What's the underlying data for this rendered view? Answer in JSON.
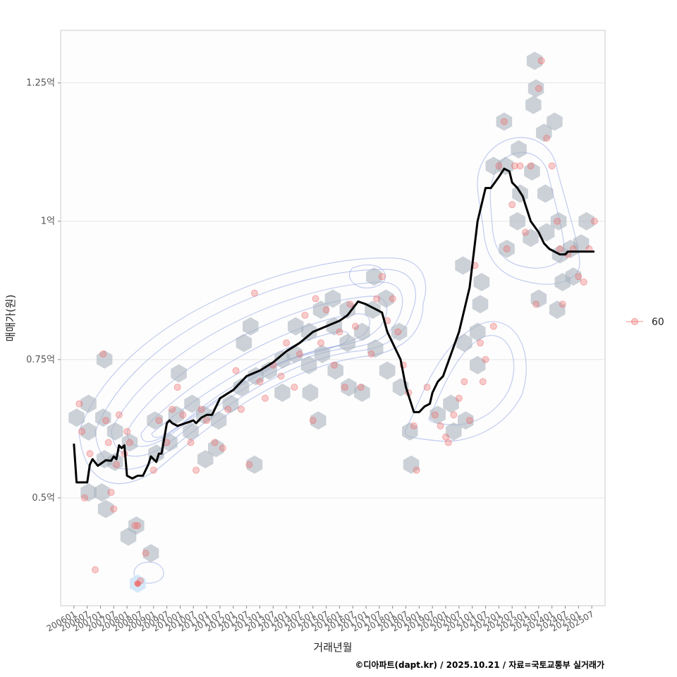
{
  "chart_data": {
    "type": "scatter",
    "xlabel": "거래년월",
    "ylabel": "매매가(원)",
    "caption": "©디아파트(dapt.kr) / 2025.10.21 / 자료=국토교통부 실거래가",
    "legend": {
      "label": "60",
      "position": "right"
    },
    "x_range": [
      2005.5,
      2026.0
    ],
    "ylim": [
      0.305,
      1.345
    ],
    "y_ticks": [
      {
        "value": 0.5,
        "label": "0.5억"
      },
      {
        "value": 0.75,
        "label": "0.75억"
      },
      {
        "value": 1.0,
        "label": "1억"
      },
      {
        "value": 1.25,
        "label": "1.25억"
      }
    ],
    "x_ticks": [
      "200601",
      "200607",
      "200701",
      "200707",
      "200801",
      "200807",
      "200901",
      "200907",
      "201001",
      "201007",
      "201101",
      "201107",
      "201201",
      "201207",
      "201301",
      "201307",
      "201401",
      "201407",
      "201501",
      "201507",
      "201601",
      "201607",
      "201701",
      "201707",
      "201801",
      "201807",
      "201901",
      "201907",
      "202001",
      "202007",
      "202101",
      "202107",
      "202201",
      "202207",
      "202301",
      "202307",
      "202401",
      "202407",
      "202501",
      "202507"
    ],
    "trend_line": {
      "name": "moving average",
      "x": [
        2006.0,
        2006.1,
        2006.5,
        2006.6,
        2006.7,
        2006.9,
        2007.2,
        2007.4,
        2007.5,
        2007.6,
        2007.7,
        2007.8,
        2007.9,
        2008.0,
        2008.2,
        2008.4,
        2008.6,
        2008.8,
        2008.9,
        2009.1,
        2009.2,
        2009.3,
        2009.5,
        2009.6,
        2009.7,
        2009.9,
        2010.2,
        2010.5,
        2010.6,
        2010.8,
        2011.0,
        2011.2,
        2011.5,
        2012.0,
        2012.5,
        2013.0,
        2013.5,
        2014.0,
        2014.5,
        2015.0,
        2015.5,
        2016.0,
        2016.3,
        2016.7,
        2017.0,
        2017.2,
        2017.4,
        2017.6,
        2017.8,
        2018.1,
        2018.3,
        2018.5,
        2018.8,
        2019.0,
        2019.2,
        2019.4,
        2019.5,
        2019.7,
        2019.9,
        2020.2,
        2020.5,
        2020.9,
        2021.2,
        2021.5,
        2021.7,
        2022.0,
        2022.2,
        2022.4,
        2022.5,
        2022.7,
        2022.9,
        2023.0,
        2023.2,
        2023.5,
        2023.7,
        2023.9,
        2024.1,
        2024.3,
        2024.5,
        2024.6,
        2024.8,
        2024.9,
        2025.0,
        2025.2,
        2025.4,
        2025.6
      ],
      "values": [
        0.598,
        0.528,
        0.528,
        0.56,
        0.57,
        0.558,
        0.568,
        0.567,
        0.575,
        0.57,
        0.595,
        0.59,
        0.595,
        0.54,
        0.535,
        0.54,
        0.54,
        0.56,
        0.575,
        0.565,
        0.58,
        0.58,
        0.635,
        0.64,
        0.635,
        0.63,
        0.635,
        0.64,
        0.635,
        0.645,
        0.65,
        0.65,
        0.68,
        0.695,
        0.72,
        0.73,
        0.745,
        0.765,
        0.78,
        0.8,
        0.81,
        0.82,
        0.83,
        0.855,
        0.85,
        0.845,
        0.84,
        0.835,
        0.8,
        0.77,
        0.75,
        0.7,
        0.655,
        0.655,
        0.665,
        0.67,
        0.69,
        0.71,
        0.72,
        0.76,
        0.8,
        0.88,
        1.0,
        1.06,
        1.06,
        1.08,
        1.095,
        1.09,
        1.07,
        1.06,
        1.045,
        1.03,
        1.0,
        0.98,
        0.96,
        0.95,
        0.945,
        0.94,
        0.94,
        0.945,
        0.945,
        0.945,
        0.945,
        0.945,
        0.945,
        0.945
      ]
    },
    "series": [
      {
        "name": "60",
        "points": [
          [
            2006.2,
            0.67
          ],
          [
            2006.3,
            0.62
          ],
          [
            2006.4,
            0.5
          ],
          [
            2006.6,
            0.58
          ],
          [
            2006.8,
            0.37
          ],
          [
            2007.1,
            0.76
          ],
          [
            2007.2,
            0.64
          ],
          [
            2007.3,
            0.6
          ],
          [
            2007.4,
            0.51
          ],
          [
            2007.5,
            0.48
          ],
          [
            2007.6,
            0.56
          ],
          [
            2007.7,
            0.65
          ],
          [
            2007.9,
            0.58
          ],
          [
            2008.0,
            0.62
          ],
          [
            2008.1,
            0.6
          ],
          [
            2008.3,
            0.45
          ],
          [
            2008.4,
            0.45
          ],
          [
            2008.5,
            0.35
          ],
          [
            2008.7,
            0.4
          ],
          [
            2009.0,
            0.55
          ],
          [
            2009.2,
            0.64
          ],
          [
            2009.5,
            0.6
          ],
          [
            2009.7,
            0.66
          ],
          [
            2009.9,
            0.7
          ],
          [
            2010.1,
            0.65
          ],
          [
            2010.4,
            0.6
          ],
          [
            2010.6,
            0.55
          ],
          [
            2010.8,
            0.66
          ],
          [
            2011.0,
            0.64
          ],
          [
            2011.3,
            0.6
          ],
          [
            2011.6,
            0.59
          ],
          [
            2011.8,
            0.66
          ],
          [
            2012.1,
            0.73
          ],
          [
            2012.3,
            0.66
          ],
          [
            2012.6,
            0.56
          ],
          [
            2012.8,
            0.87
          ],
          [
            2013.0,
            0.71
          ],
          [
            2013.2,
            0.68
          ],
          [
            2013.5,
            0.74
          ],
          [
            2013.8,
            0.72
          ],
          [
            2014.0,
            0.78
          ],
          [
            2014.3,
            0.7
          ],
          [
            2014.5,
            0.76
          ],
          [
            2014.7,
            0.83
          ],
          [
            2015.0,
            0.64
          ],
          [
            2015.1,
            0.86
          ],
          [
            2015.3,
            0.78
          ],
          [
            2015.5,
            0.84
          ],
          [
            2015.8,
            0.74
          ],
          [
            2016.0,
            0.8
          ],
          [
            2016.2,
            0.7
          ],
          [
            2016.4,
            0.85
          ],
          [
            2016.6,
            0.81
          ],
          [
            2016.8,
            0.7
          ],
          [
            2017.2,
            0.76
          ],
          [
            2017.4,
            0.86
          ],
          [
            2017.6,
            0.9
          ],
          [
            2017.8,
            0.82
          ],
          [
            2018.0,
            0.86
          ],
          [
            2018.2,
            0.8
          ],
          [
            2018.4,
            0.74
          ],
          [
            2018.6,
            0.69
          ],
          [
            2018.8,
            0.63
          ],
          [
            2018.9,
            0.55
          ],
          [
            2019.3,
            0.7
          ],
          [
            2019.6,
            0.65
          ],
          [
            2019.8,
            0.63
          ],
          [
            2020.0,
            0.61
          ],
          [
            2020.1,
            0.6
          ],
          [
            2020.3,
            0.65
          ],
          [
            2020.5,
            0.68
          ],
          [
            2020.7,
            0.71
          ],
          [
            2020.9,
            0.64
          ],
          [
            2021.1,
            0.92
          ],
          [
            2021.3,
            0.78
          ],
          [
            2021.4,
            0.71
          ],
          [
            2021.5,
            0.75
          ],
          [
            2021.8,
            0.81
          ],
          [
            2022.0,
            1.1
          ],
          [
            2022.2,
            1.18
          ],
          [
            2022.3,
            0.95
          ],
          [
            2022.5,
            1.03
          ],
          [
            2022.6,
            1.1
          ],
          [
            2022.8,
            1.1
          ],
          [
            2023.0,
            0.98
          ],
          [
            2023.2,
            1.1
          ],
          [
            2023.4,
            0.85
          ],
          [
            2023.5,
            1.24
          ],
          [
            2023.6,
            1.29
          ],
          [
            2023.8,
            1.15
          ],
          [
            2024.0,
            1.1
          ],
          [
            2024.2,
            1.0
          ],
          [
            2024.3,
            0.95
          ],
          [
            2024.4,
            0.85
          ],
          [
            2024.6,
            0.94
          ],
          [
            2024.8,
            0.95
          ],
          [
            2025.0,
            0.9
          ],
          [
            2025.2,
            0.89
          ],
          [
            2025.4,
            0.95
          ],
          [
            2025.6,
            1.0
          ]
        ]
      }
    ],
    "hexbin_centers": [
      [
        2006.1,
        0.645
      ],
      [
        2006.55,
        0.67
      ],
      [
        2006.55,
        0.62
      ],
      [
        2006.55,
        0.51
      ],
      [
        2007.05,
        0.51
      ],
      [
        2007.15,
        0.57
      ],
      [
        2007.1,
        0.645
      ],
      [
        2007.15,
        0.75
      ],
      [
        2007.2,
        0.48
      ],
      [
        2007.55,
        0.62
      ],
      [
        2007.55,
        0.565
      ],
      [
        2008.1,
        0.6
      ],
      [
        2008.05,
        0.43
      ],
      [
        2008.35,
        0.45
      ],
      [
        2008.9,
        0.4
      ],
      [
        2009.05,
        0.64
      ],
      [
        2009.1,
        0.58
      ],
      [
        2009.6,
        0.6
      ],
      [
        2009.85,
        0.65
      ],
      [
        2009.95,
        0.725
      ],
      [
        2010.4,
        0.62
      ],
      [
        2010.45,
        0.67
      ],
      [
        2010.9,
        0.65
      ],
      [
        2010.95,
        0.57
      ],
      [
        2011.35,
        0.59
      ],
      [
        2011.45,
        0.64
      ],
      [
        2011.9,
        0.67
      ],
      [
        2012.3,
        0.7
      ],
      [
        2012.4,
        0.78
      ],
      [
        2012.65,
        0.81
      ],
      [
        2012.8,
        0.56
      ],
      [
        2012.85,
        0.72
      ],
      [
        2013.35,
        0.73
      ],
      [
        2013.85,
        0.75
      ],
      [
        2013.85,
        0.69
      ],
      [
        2014.3,
        0.76
      ],
      [
        2014.35,
        0.81
      ],
      [
        2014.85,
        0.8
      ],
      [
        2014.85,
        0.74
      ],
      [
        2014.9,
        0.69
      ],
      [
        2015.2,
        0.64
      ],
      [
        2015.3,
        0.84
      ],
      [
        2015.35,
        0.76
      ],
      [
        2015.75,
        0.86
      ],
      [
        2015.8,
        0.81
      ],
      [
        2015.85,
        0.73
      ],
      [
        2016.3,
        0.84
      ],
      [
        2016.3,
        0.78
      ],
      [
        2016.35,
        0.7
      ],
      [
        2016.85,
        0.8
      ],
      [
        2016.85,
        0.69
      ],
      [
        2017.25,
        0.84
      ],
      [
        2017.3,
        0.9
      ],
      [
        2017.35,
        0.77
      ],
      [
        2017.75,
        0.86
      ],
      [
        2017.8,
        0.73
      ],
      [
        2018.25,
        0.8
      ],
      [
        2018.3,
        0.7
      ],
      [
        2018.65,
        0.62
      ],
      [
        2018.7,
        0.56
      ],
      [
        2019.7,
        0.65
      ],
      [
        2020.2,
        0.67
      ],
      [
        2020.3,
        0.62
      ],
      [
        2020.65,
        0.92
      ],
      [
        2020.7,
        0.78
      ],
      [
        2020.75,
        0.64
      ],
      [
        2021.2,
        0.8
      ],
      [
        2021.2,
        0.74
      ],
      [
        2021.3,
        0.85
      ],
      [
        2021.35,
        0.89
      ],
      [
        2021.8,
        1.1
      ],
      [
        2022.2,
        1.18
      ],
      [
        2022.25,
        1.1
      ],
      [
        2022.3,
        0.95
      ],
      [
        2022.7,
        1.0
      ],
      [
        2022.75,
        1.13
      ],
      [
        2022.8,
        1.05
      ],
      [
        2023.2,
        0.97
      ],
      [
        2023.25,
        1.09
      ],
      [
        2023.3,
        1.21
      ],
      [
        2023.4,
        1.24
      ],
      [
        2023.35,
        1.29
      ],
      [
        2023.7,
        1.16
      ],
      [
        2023.75,
        1.05
      ],
      [
        2023.8,
        0.98
      ],
      [
        2024.1,
        1.18
      ],
      [
        2024.25,
        1.0
      ],
      [
        2024.3,
        0.94
      ],
      [
        2024.4,
        0.89
      ],
      [
        2024.7,
        0.95
      ],
      [
        2024.8,
        0.9
      ],
      [
        2025.1,
        0.96
      ],
      [
        2025.3,
        1.0
      ],
      [
        2023.5,
        0.86
      ],
      [
        2024.2,
        0.84
      ]
    ],
    "highlight_point": [
      2008.4,
      0.345
    ],
    "colors": {
      "points": "#ee6e6e",
      "trend": "#000000",
      "hex_fill": "#aab4be",
      "contour": "#7a90e0",
      "grid": "#e6e6e6",
      "panel_border": "#cccccc",
      "highlight_hex": "#cfe6f7"
    }
  }
}
